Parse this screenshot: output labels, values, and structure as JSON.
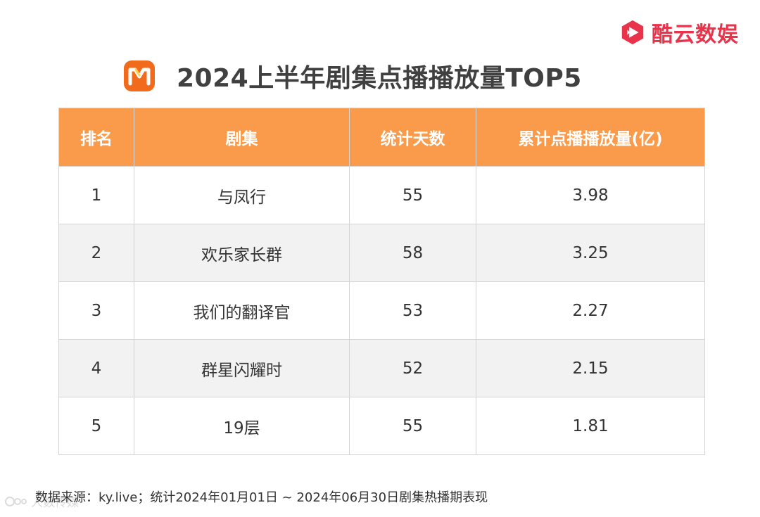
{
  "brand": {
    "name": "酷云数娱",
    "color": "#e8334a"
  },
  "header": {
    "platform_icon": "mango-tv-logo-icon",
    "platform_color": "#f26b1d",
    "title": "2024上半年剧集点播播放量TOP5"
  },
  "table": {
    "header_color": "#f99b4a",
    "columns": [
      "排名",
      "剧集",
      "统计天数",
      "累计点播播放量(亿)"
    ],
    "rows": [
      {
        "rank": "1",
        "name": "与凤行",
        "days": "55",
        "views": "3.98"
      },
      {
        "rank": "2",
        "name": "欢乐家长群",
        "days": "58",
        "views": "3.25"
      },
      {
        "rank": "3",
        "name": "我们的翻译官",
        "days": "53",
        "views": "2.27"
      },
      {
        "rank": "4",
        "name": "群星闪耀时",
        "days": "52",
        "views": "2.15"
      },
      {
        "rank": "5",
        "name": "19层",
        "days": "55",
        "views": "1.81"
      }
    ]
  },
  "footer": {
    "source": "数据来源：ky.live；统计2024年01月01日 ~ 2024年06月30日剧集热播期表现",
    "watermark": "人数传媒"
  }
}
